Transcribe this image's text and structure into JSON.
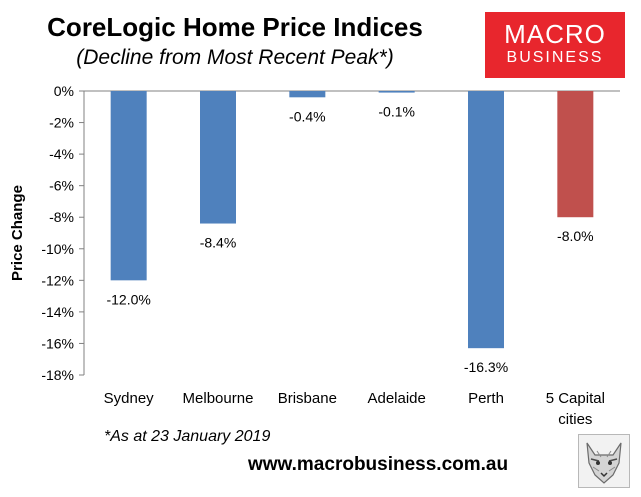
{
  "header": {
    "title": "CoreLogic Home Price Indices",
    "subtitle": "(Decline from Most Recent Peak*)"
  },
  "logo": {
    "line1": "MACRO",
    "line2": "BUSINESS",
    "color": "#e8262d"
  },
  "chart_data": {
    "type": "bar",
    "title": "CoreLogic Home Price Indices",
    "subtitle": "(Decline from Most Recent Peak*)",
    "xlabel": "",
    "ylabel": "Price Change",
    "ylim": [
      -18,
      0
    ],
    "yticks": [
      0,
      -2,
      -4,
      -6,
      -8,
      -10,
      -12,
      -14,
      -16,
      -18
    ],
    "ytick_labels": [
      "0%",
      "-2%",
      "-4%",
      "-6%",
      "-8%",
      "-10%",
      "-12%",
      "-14%",
      "-16%",
      "-18%"
    ],
    "grid": false,
    "categories": [
      "Sydney",
      "Melbourne",
      "Brisbane",
      "Adelaide",
      "Perth",
      "5 Capital cities"
    ],
    "category_lines": [
      [
        "Sydney"
      ],
      [
        "Melbourne"
      ],
      [
        "Brisbane"
      ],
      [
        "Adelaide"
      ],
      [
        "Perth"
      ],
      [
        "5 Capital",
        "cities"
      ]
    ],
    "values": [
      -12.0,
      -8.4,
      -0.4,
      -0.1,
      -16.3,
      -8.0
    ],
    "value_labels": [
      "-12.0%",
      "-8.4%",
      "-0.4%",
      "-0.1%",
      "-16.3%",
      "-8.0%"
    ],
    "colors": [
      "#4f81bd",
      "#4f81bd",
      "#4f81bd",
      "#4f81bd",
      "#4f81bd",
      "#c0504d"
    ]
  },
  "footer": {
    "footnote": "*As at 23 January 2019",
    "website": "www.macrobusiness.com.au",
    "image_icon": "wolf-icon"
  }
}
